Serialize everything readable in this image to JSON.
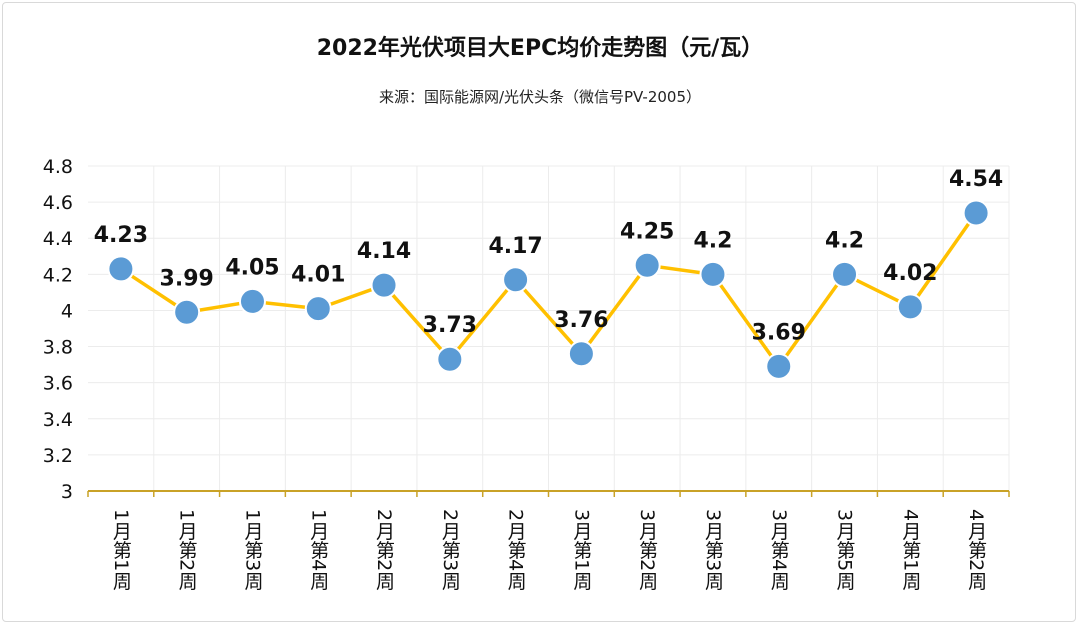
{
  "chart_data": {
    "type": "line",
    "title": "2022年光伏项目大EPC均价走势图（元/瓦）",
    "subtitle": "来源：国际能源网/光伏头条（微信号PV-2005）",
    "categories": [
      "1月第1周",
      "1月第2周",
      "1月第3周",
      "1月第4周",
      "2月第2周",
      "2月第3周",
      "2月第4周",
      "3月第1周",
      "3月第2周",
      "3月第3周",
      "3月第4周",
      "3月第5周",
      "4月第1周",
      "4月第2周"
    ],
    "series": [
      {
        "values": [
          4.23,
          3.99,
          4.05,
          4.01,
          4.14,
          3.73,
          4.17,
          3.76,
          4.25,
          4.2,
          3.69,
          4.2,
          4.02,
          4.54
        ]
      }
    ],
    "data_labels": [
      "4.23",
      "3.99",
      "4.05",
      "4.01",
      "4.14",
      "3.73",
      "4.17",
      "3.76",
      "4.25",
      "4.2",
      "3.69",
      "4.2",
      "4.02",
      "4.54"
    ],
    "ylim": [
      3,
      4.8
    ],
    "yticks": [
      "3",
      "3.2",
      "3.4",
      "3.6",
      "3.8",
      "4",
      "4.2",
      "4.4",
      "4.6",
      "4.8"
    ],
    "grid": true,
    "colors": {
      "line": "#FFC000",
      "marker": "#5B9BD5",
      "marker_edge": "#ffffff",
      "axis": "#C9A227",
      "grid": "#ececec"
    }
  }
}
